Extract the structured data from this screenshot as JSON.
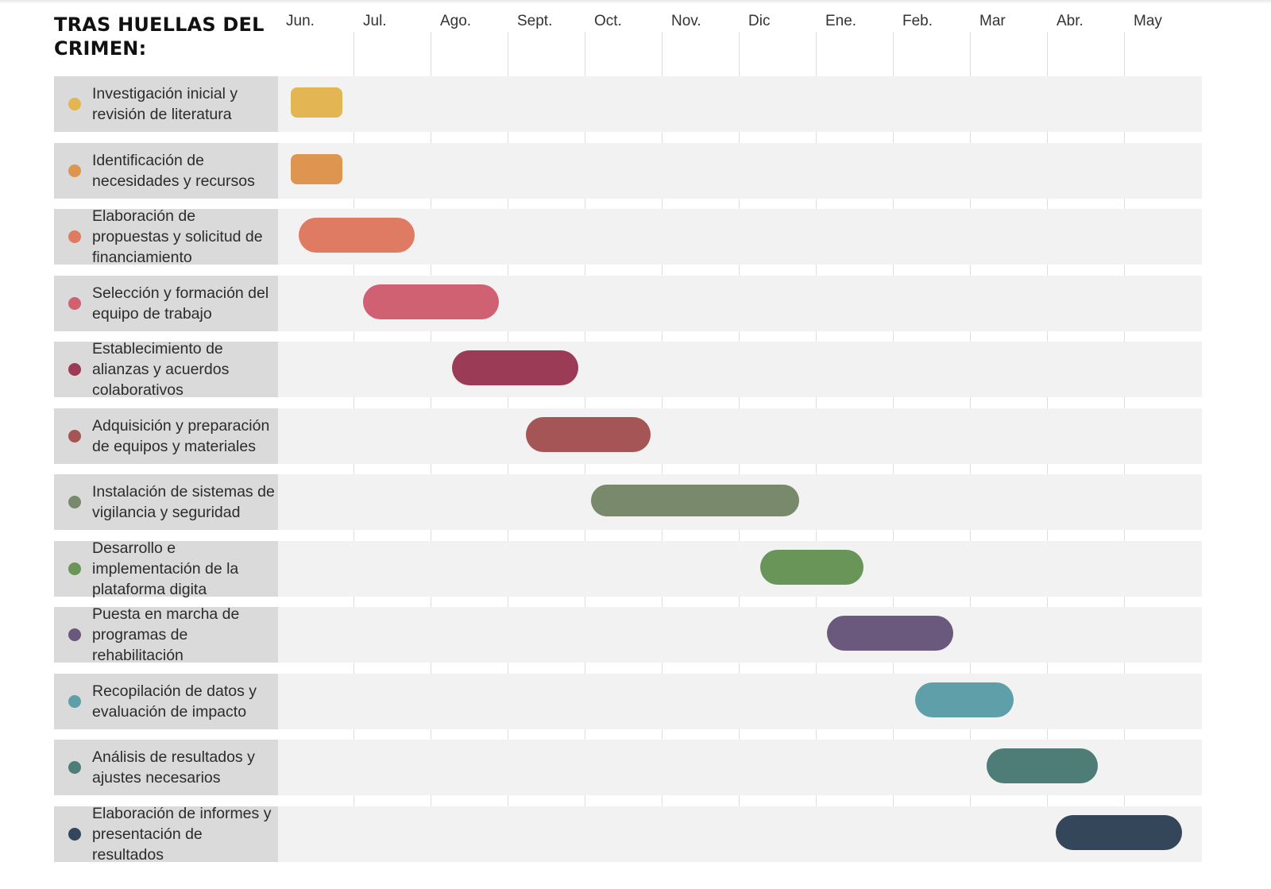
{
  "title": "TRAS HUELLAS DEL CRIMEN:",
  "chart_data": {
    "type": "gantt",
    "months": [
      "Jun.",
      "Jul.",
      "Ago.",
      "Sept.",
      "Oct.",
      "Nov.",
      "Dic",
      "Ene.",
      "Feb.",
      "Mar",
      "Abr.",
      "May"
    ],
    "tasks": [
      {
        "label": "Investigación inicial y revisión de literatura",
        "start": 0.17,
        "end": 0.83,
        "color": "#E3B553"
      },
      {
        "label": "Identificación de necesidades y recursos",
        "start": 0.17,
        "end": 0.83,
        "color": "#DE9550"
      },
      {
        "label": "Elaboración de propuestas y solicitud de financiamiento",
        "start": 0.27,
        "end": 1.77,
        "color": "#E07B63"
      },
      {
        "label": "Selección y formación del equipo de trabajo",
        "start": 1.1,
        "end": 2.87,
        "color": "#CF6173"
      },
      {
        "label": "Establecimiento de alianzas y acuerdos colaborativos",
        "start": 2.26,
        "end": 3.9,
        "color": "#9B3B55"
      },
      {
        "label": "Adquisición y preparación de equipos y materiales",
        "start": 3.22,
        "end": 4.84,
        "color": "#A65556"
      },
      {
        "label": "Instalación de sistemas de vigilancia y seguridad",
        "start": 4.06,
        "end": 6.76,
        "color": "#788A6B"
      },
      {
        "label": "Desarrollo e implementación de la plataforma digita",
        "start": 6.26,
        "end": 7.6,
        "color": "#6A9558"
      },
      {
        "label": "Puesta en marcha de programas de rehabilitación",
        "start": 7.12,
        "end": 8.76,
        "color": "#6A587D"
      },
      {
        "label": "Recopilación de datos y evaluación de impacto",
        "start": 8.27,
        "end": 9.55,
        "color": "#5F9FAA"
      },
      {
        "label": "Análisis de resultados y ajustes necesarios",
        "start": 9.2,
        "end": 10.64,
        "color": "#4E7D78"
      },
      {
        "label": "Elaboración de informes y presentación de resultados",
        "start": 10.09,
        "end": 11.73,
        "color": "#34475A"
      }
    ]
  }
}
